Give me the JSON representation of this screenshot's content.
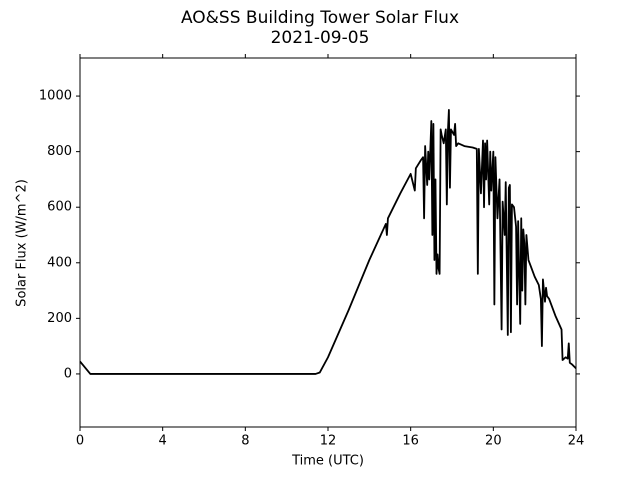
{
  "chart_data": {
    "type": "line",
    "title": "AO&SS Building Tower Solar Flux",
    "subtitle": "2021-09-05",
    "x_label": "Time (UTC)",
    "y_label": "Solar Flux (W/m^2)",
    "xlim": [
      0,
      24
    ],
    "xticks": [
      0,
      4,
      8,
      12,
      16,
      20,
      24
    ],
    "ylim": [
      -191,
      1137
    ],
    "yticks": [
      0,
      200,
      400,
      600,
      800,
      1000
    ],
    "grid": false,
    "x": [
      0,
      0.5,
      11.4,
      11.6,
      12,
      13,
      14,
      14.8,
      14.85,
      14.9,
      15.5,
      16,
      16.2,
      16.25,
      16.5,
      16.6,
      16.65,
      16.7,
      16.8,
      16.85,
      16.9,
      17.0,
      17.05,
      17.1,
      17.15,
      17.2,
      17.25,
      17.3,
      17.35,
      17.4,
      17.45,
      17.5,
      17.6,
      17.7,
      17.75,
      17.8,
      17.85,
      17.9,
      17.95,
      18.1,
      18.15,
      18.2,
      18.3,
      18.6,
      19.0,
      19.2,
      19.25,
      19.3,
      19.4,
      19.5,
      19.55,
      19.6,
      19.65,
      19.7,
      19.8,
      19.85,
      19.9,
      20.0,
      20.05,
      20.1,
      20.2,
      20.3,
      20.4,
      20.45,
      20.55,
      20.6,
      20.7,
      20.75,
      20.8,
      20.85,
      20.9,
      21.0,
      21.1,
      21.15,
      21.2,
      21.3,
      21.35,
      21.4,
      21.45,
      21.5,
      21.55,
      21.6,
      21.7,
      21.8,
      22.0,
      22.2,
      22.3,
      22.35,
      22.4,
      22.5,
      22.55,
      22.6,
      22.7,
      23.0,
      23.3,
      23.35,
      23.5,
      23.6,
      23.65,
      23.7,
      23.8,
      24
    ],
    "series": [
      {
        "color": "#000000",
        "values": [
          45,
          0,
          0,
          5,
          60,
          230,
          410,
          540,
          500,
          560,
          650,
          720,
          660,
          740,
          770,
          780,
          560,
          820,
          680,
          800,
          700,
          910,
          500,
          900,
          410,
          700,
          360,
          430,
          380,
          360,
          880,
          860,
          830,
          880,
          610,
          870,
          950,
          670,
          880,
          860,
          900,
          820,
          830,
          820,
          815,
          810,
          360,
          810,
          650,
          840,
          600,
          830,
          700,
          840,
          610,
          800,
          660,
          800,
          250,
          780,
          560,
          700,
          160,
          620,
          500,
          690,
          140,
          670,
          680,
          150,
          610,
          600,
          530,
          250,
          550,
          180,
          560,
          300,
          520,
          470,
          250,
          500,
          410,
          390,
          350,
          320,
          270,
          100,
          340,
          260,
          310,
          280,
          270,
          210,
          160,
          50,
          60,
          55,
          110,
          40,
          35,
          20
        ]
      }
    ]
  }
}
